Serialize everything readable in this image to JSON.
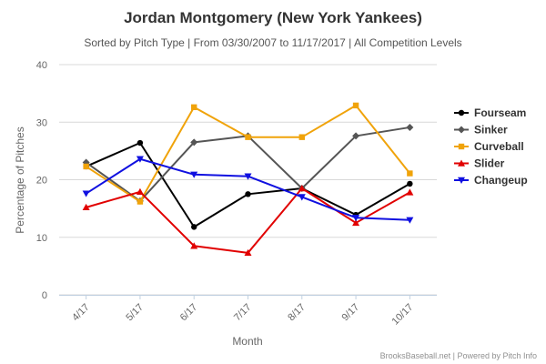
{
  "chart_data": {
    "type": "line",
    "title": "Jordan Montgomery (New York Yankees)",
    "subtitle": "Sorted by Pitch Type | From 03/30/2007 to 11/17/2017 | All Competition Levels",
    "xlabel": "Month",
    "ylabel": "Percentage of Pitches",
    "categories": [
      "4/17",
      "5/17",
      "6/17",
      "7/17",
      "8/17",
      "9/17",
      "10/17"
    ],
    "ylim": [
      0,
      40
    ],
    "yticks": [
      "0",
      "10",
      "20",
      "30",
      "40"
    ],
    "grid": true,
    "legend_position": "right",
    "series": [
      {
        "name": "Fourseam",
        "color": "#000000",
        "marker": "circle",
        "values": [
          22.3,
          26.4,
          11.8,
          17.5,
          18.5,
          13.9,
          19.3
        ]
      },
      {
        "name": "Sinker",
        "color": "#555555",
        "marker": "diamond",
        "values": [
          23.0,
          16.3,
          26.5,
          27.6,
          18.5,
          27.6,
          29.1
        ]
      },
      {
        "name": "Curveball",
        "color": "#f0a30a",
        "marker": "square",
        "values": [
          22.3,
          16.2,
          32.6,
          27.4,
          27.4,
          32.9,
          21.1
        ]
      },
      {
        "name": "Slider",
        "color": "#e10000",
        "marker": "triangle-up",
        "values": [
          15.2,
          17.9,
          8.5,
          7.3,
          18.5,
          12.5,
          17.8
        ]
      },
      {
        "name": "Changeup",
        "color": "#1010e0",
        "marker": "triangle-down",
        "values": [
          17.6,
          23.6,
          20.9,
          20.6,
          17.0,
          13.4,
          13.0
        ]
      }
    ]
  },
  "credit": "BrooksBaseball.net | Powered by Pitch Info"
}
